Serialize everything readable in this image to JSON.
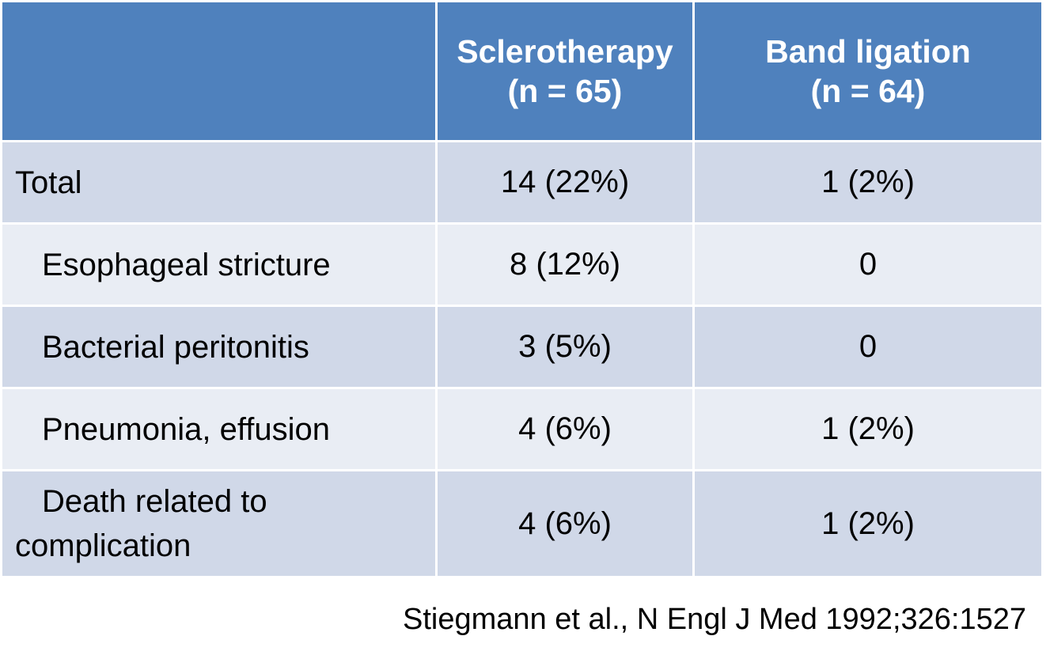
{
  "table": {
    "headers": [
      {
        "line1": "",
        "line2": ""
      },
      {
        "line1": "Sclerotherapy",
        "line2": "(n = 65)"
      },
      {
        "line1": "Band ligation",
        "line2": "(n = 64)"
      }
    ],
    "rows": [
      {
        "label1": "Total",
        "label2": "",
        "sclero": "14 (22%)",
        "band": "1 (2%)"
      },
      {
        "label1": "Esophageal stricture",
        "label2": "",
        "sclero": "8 (12%)",
        "band": "0"
      },
      {
        "label1": "Bacterial peritonitis",
        "label2": "",
        "sclero": "3 (5%)",
        "band": "0"
      },
      {
        "label1": "Pneumonia, effusion",
        "label2": "",
        "sclero": "4 (6%)",
        "band": "1 (2%)"
      },
      {
        "label1": "Death related to",
        "label2": "complication",
        "sclero": "4 (6%)",
        "band": "1 (2%)"
      }
    ]
  },
  "citation": "Stiegmann et al., N Engl J Med 1992;326:1527",
  "colors": {
    "header_bg": "#4f81bd",
    "row_odd_bg": "#d0d8e8",
    "row_even_bg": "#e9edf4"
  }
}
